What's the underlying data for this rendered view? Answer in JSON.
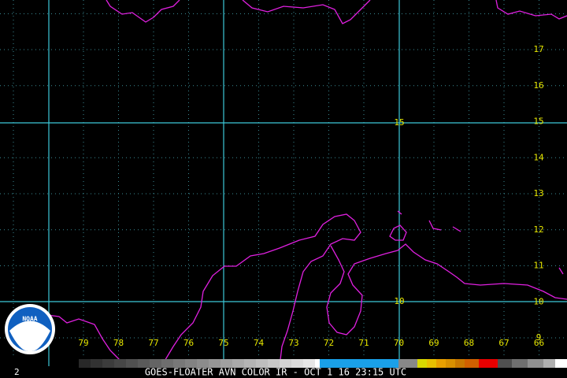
{
  "logo": {
    "text": "NOAA"
  },
  "map": {
    "latitude_labels": [
      "17",
      "16",
      "15",
      "14",
      "13",
      "12",
      "11",
      "10",
      "9"
    ],
    "longitude_labels": [
      "79",
      "78",
      "77",
      "76",
      "75",
      "74",
      "73",
      "72",
      "71",
      "70",
      "69",
      "68",
      "67",
      "66"
    ],
    "center_labels": [
      "15",
      "10"
    ]
  },
  "footer": {
    "frame": "2",
    "caption": "GOES-FLOATER AVN COLOR IR - OCT 1 16 23:15 UTC"
  }
}
